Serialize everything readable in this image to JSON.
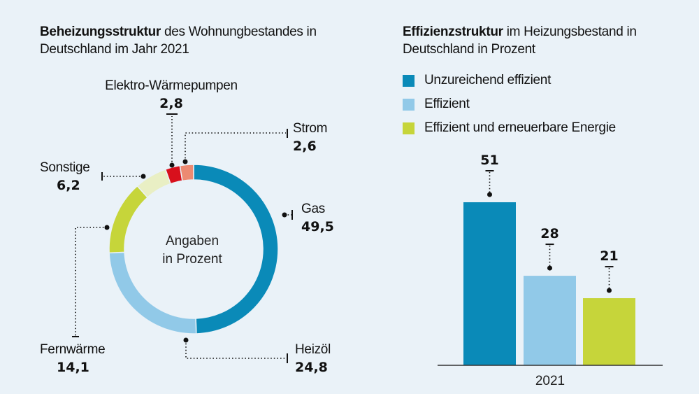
{
  "chart_data": [
    {
      "type": "pie",
      "variant": "donut",
      "title_bold": "Beheizungsstruktur",
      "title_rest": " des Wohnungbestandes in Deutschland im Jahr 2021",
      "center_label": [
        "Angaben",
        "in Prozent"
      ],
      "slices": [
        {
          "name": "Gas",
          "value": 49.5,
          "value_label": "49,5",
          "color": "#0a8ab8"
        },
        {
          "name": "Heizöl",
          "value": 24.8,
          "value_label": "24,8",
          "color": "#91c9e8"
        },
        {
          "name": "Fernwärme",
          "value": 14.1,
          "value_label": "14,1",
          "color": "#c6d53a"
        },
        {
          "name": "Sonstige",
          "value": 6.2,
          "value_label": "6,2",
          "color": "#e9efc4"
        },
        {
          "name": "Elektro-Wärmepumpen",
          "value": 2.8,
          "value_label": "2,8",
          "color": "#d8101c"
        },
        {
          "name": "Strom",
          "value": 2.6,
          "value_label": "2,6",
          "color": "#ec8a72"
        }
      ]
    },
    {
      "type": "bar",
      "title_bold": "Effizienzstruktur",
      "title_rest": " im Heizungsbestand in Deutschland in Prozent",
      "categories": [
        "2021"
      ],
      "series": [
        {
          "name": "Unzureichend effizient",
          "values": [
            51
          ],
          "color": "#0a8ab8"
        },
        {
          "name": "Effizient",
          "values": [
            28
          ],
          "color": "#91c9e8"
        },
        {
          "name": "Effizient und erneuerbare Energie",
          "values": [
            21
          ],
          "color": "#c6d53a"
        }
      ],
      "xlabel": "",
      "ylabel": "",
      "ylim": [
        0,
        60
      ],
      "grid": false,
      "legend": "top-left"
    }
  ]
}
